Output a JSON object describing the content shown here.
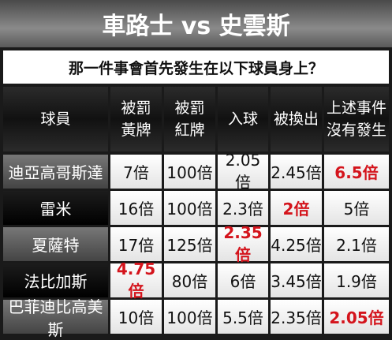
{
  "title": "車路士 vs 史雲斯",
  "subtitle": "那一件事會首先發生在以下球員身上？",
  "table": {
    "header": [
      [
        "球員"
      ],
      [
        "被罰",
        "黃牌"
      ],
      [
        "被罰",
        "紅牌"
      ],
      [
        "入球"
      ],
      [
        "被換出"
      ],
      [
        "上述事件",
        "沒有發生"
      ]
    ],
    "highlight_color": "#d4141c",
    "rows": [
      {
        "player": "迪亞高哥斯達",
        "odds": [
          "7倍",
          "100倍",
          "2.05倍",
          "2.45倍",
          "6.5倍"
        ],
        "highlight": 4
      },
      {
        "player": "雷米",
        "odds": [
          "16倍",
          "100倍",
          "2.3倍",
          "2倍",
          "5倍"
        ],
        "highlight": 3
      },
      {
        "player": "夏薩特",
        "odds": [
          "17倍",
          "125倍",
          "2.35倍",
          "4.25倍",
          "2.1倍"
        ],
        "highlight": 2
      },
      {
        "player": "法比加斯",
        "odds": [
          "4.75倍",
          "80倍",
          "6倍",
          "3.45倍",
          "1.9倍"
        ],
        "highlight": 0
      },
      {
        "player": "巴菲迪比高美斯",
        "odds": [
          "10倍",
          "100倍",
          "5.5倍",
          "2.35倍",
          "2.05倍"
        ],
        "highlight": 4
      }
    ]
  }
}
